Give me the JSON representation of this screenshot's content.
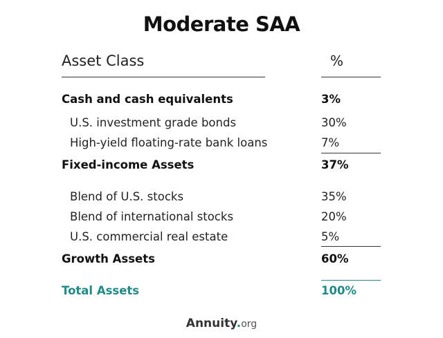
{
  "title": "Moderate SAA",
  "table": {
    "headers": {
      "asset_class": "Asset Class",
      "percent": "%"
    },
    "rows": [
      {
        "label": "Cash and cash equivalents",
        "value": "3%",
        "level": "total"
      },
      {
        "label": "U.S. investment grade bonds",
        "value": "30%",
        "level": "item"
      },
      {
        "label": "High-yield floating-rate bank loans",
        "value": "7%",
        "level": "item"
      },
      {
        "label": "Fixed-income Assets",
        "value": "37%",
        "level": "total"
      },
      {
        "label": "Blend of U.S. stocks",
        "value": "35%",
        "level": "item"
      },
      {
        "label": "Blend of international stocks",
        "value": "20%",
        "level": "item"
      },
      {
        "label": "U.S. commercial real estate",
        "value": "5%",
        "level": "item"
      },
      {
        "label": "Growth Assets",
        "value": "60%",
        "level": "total"
      },
      {
        "label": "Total Assets",
        "value": "100%",
        "level": "grand-total"
      }
    ]
  },
  "brand": {
    "name": "Annuity",
    "dot": ".",
    "tld": "org"
  },
  "colors": {
    "accent": "#1f8a86",
    "text": "#111111"
  }
}
